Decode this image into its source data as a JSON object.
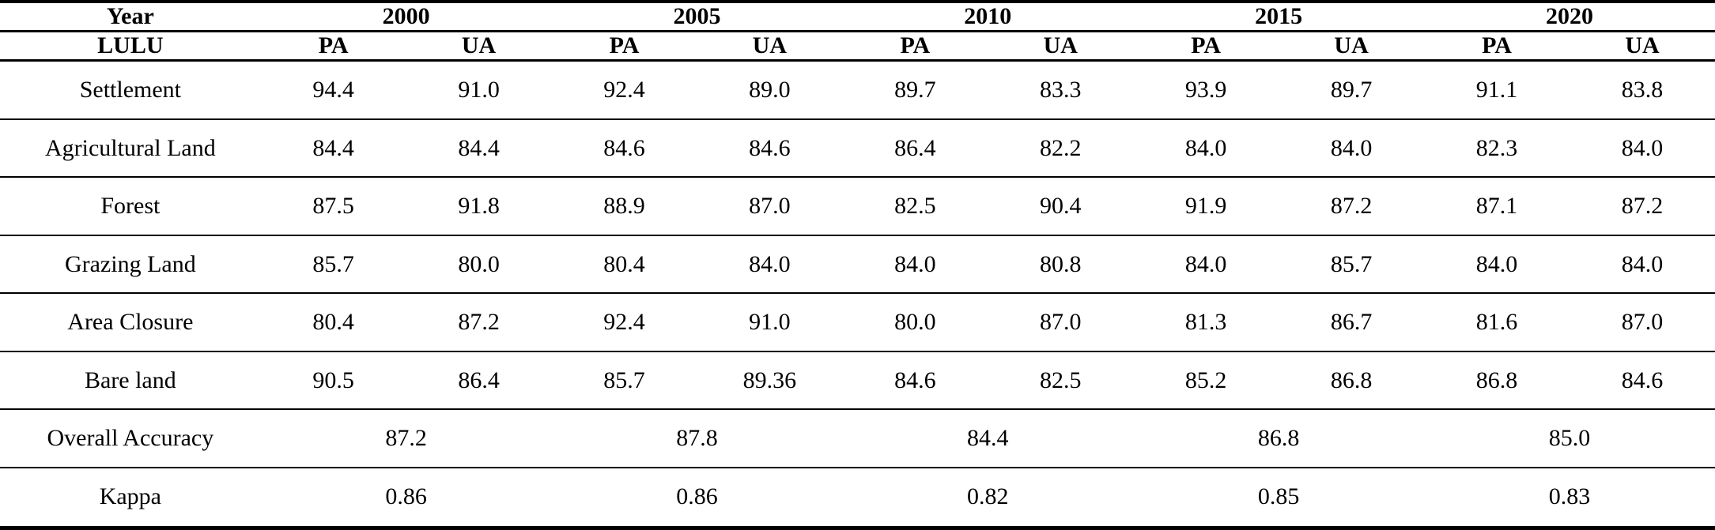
{
  "table": {
    "year_label": "Year",
    "years": [
      "2000",
      "2005",
      "2010",
      "2015",
      "2020"
    ],
    "lulu_label": "LULU",
    "subheaders": [
      "PA",
      "UA",
      "PA",
      "UA",
      "PA",
      "UA",
      "PA",
      "UA",
      "PA",
      "UA"
    ],
    "rows": [
      {
        "label": "Settlement",
        "values": [
          "94.4",
          "91.0",
          "92.4",
          "89.0",
          "89.7",
          "83.3",
          "93.9",
          "89.7",
          "91.1",
          "83.8"
        ]
      },
      {
        "label": "Agricultural Land",
        "values": [
          "84.4",
          "84.4",
          "84.6",
          "84.6",
          "86.4",
          "82.2",
          "84.0",
          "84.0",
          "82.3",
          "84.0"
        ]
      },
      {
        "label": "Forest",
        "values": [
          "87.5",
          "91.8",
          "88.9",
          "87.0",
          "82.5",
          "90.4",
          "91.9",
          "87.2",
          "87.1",
          "87.2"
        ]
      },
      {
        "label": "Grazing Land",
        "values": [
          "85.7",
          "80.0",
          "80.4",
          "84.0",
          "84.0",
          "80.8",
          "84.0",
          "85.7",
          "84.0",
          "84.0"
        ]
      },
      {
        "label": "Area Closure",
        "values": [
          "80.4",
          "87.2",
          "92.4",
          "91.0",
          "80.0",
          "87.0",
          "81.3",
          "86.7",
          "81.6",
          "87.0"
        ]
      },
      {
        "label": "Bare land",
        "values": [
          "90.5",
          "86.4",
          "85.7",
          "89.36",
          "84.6",
          "82.5",
          "85.2",
          "86.8",
          "86.8",
          "84.6"
        ]
      }
    ],
    "overall": {
      "label": "Overall Accuracy",
      "values": [
        "87.2",
        "87.8",
        "84.4",
        "86.8",
        "85.0"
      ]
    },
    "kappa": {
      "label": "Kappa",
      "values": [
        "0.86",
        "0.86",
        "0.82",
        "0.85",
        "0.83"
      ]
    }
  },
  "colors": {
    "border": "#000000",
    "background": "#ffffff",
    "text": "#000000"
  }
}
